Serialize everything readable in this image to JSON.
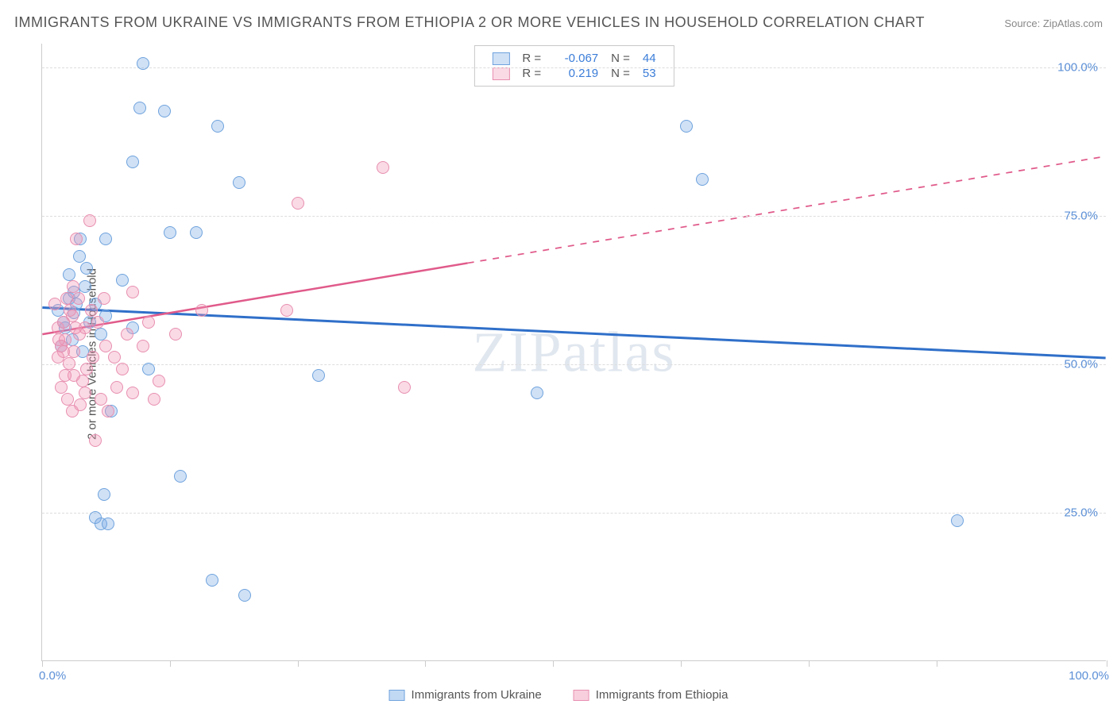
{
  "title": "IMMIGRANTS FROM UKRAINE VS IMMIGRANTS FROM ETHIOPIA 2 OR MORE VEHICLES IN HOUSEHOLD CORRELATION CHART",
  "source_label": "Source:",
  "source_value": "ZipAtlas.com",
  "ylabel": "2 or more Vehicles in Household",
  "watermark": "ZIPatlas",
  "chart": {
    "type": "scatter",
    "xlim": [
      0,
      100
    ],
    "ylim": [
      0,
      104
    ],
    "y_gridlines": [
      25,
      50,
      75,
      100
    ],
    "y_tick_labels": [
      "25.0%",
      "50.0%",
      "75.0%",
      "100.0%"
    ],
    "x_ticks": [
      0,
      12,
      24,
      36,
      48,
      60,
      72,
      84,
      100
    ],
    "x_tick_labels": {
      "left": "0.0%",
      "right": "100.0%"
    },
    "grid_color": "#dddddd",
    "axis_color": "#cccccc",
    "background_color": "#ffffff",
    "marker_radius": 8,
    "marker_border_width": 1.5,
    "series": [
      {
        "name": "Immigrants from Ukraine",
        "fill": "rgba(120,170,230,0.35)",
        "stroke": "#6fa3dd",
        "trend_color": "#2f6fc9",
        "trend_width": 3,
        "R": "-0.067",
        "N": "44",
        "trend": {
          "x1": 0,
          "y1": 59.5,
          "x2": 100,
          "y2": 51,
          "solid_until_x": 100
        },
        "points": [
          {
            "x": 9.5,
            "y": 100.5
          },
          {
            "x": 9.2,
            "y": 93
          },
          {
            "x": 11.5,
            "y": 92.5
          },
          {
            "x": 16.5,
            "y": 90
          },
          {
            "x": 8.5,
            "y": 84
          },
          {
            "x": 18.5,
            "y": 80.5
          },
          {
            "x": 12,
            "y": 72
          },
          {
            "x": 14.5,
            "y": 72
          },
          {
            "x": 6,
            "y": 71
          },
          {
            "x": 3.5,
            "y": 68
          },
          {
            "x": 7.5,
            "y": 64
          },
          {
            "x": 4,
            "y": 63
          },
          {
            "x": 2.5,
            "y": 61
          },
          {
            "x": 1.5,
            "y": 59
          },
          {
            "x": 3,
            "y": 58.5
          },
          {
            "x": 4.5,
            "y": 57
          },
          {
            "x": 2.2,
            "y": 56
          },
          {
            "x": 5.5,
            "y": 55
          },
          {
            "x": 2.8,
            "y": 54
          },
          {
            "x": 1.8,
            "y": 53
          },
          {
            "x": 3.8,
            "y": 52
          },
          {
            "x": 10,
            "y": 49
          },
          {
            "x": 26,
            "y": 48
          },
          {
            "x": 6.5,
            "y": 42
          },
          {
            "x": 13,
            "y": 31
          },
          {
            "x": 5.8,
            "y": 28
          },
          {
            "x": 5,
            "y": 24
          },
          {
            "x": 5.5,
            "y": 23
          },
          {
            "x": 6.2,
            "y": 23
          },
          {
            "x": 86,
            "y": 23.5
          },
          {
            "x": 16,
            "y": 13.5
          },
          {
            "x": 19,
            "y": 11
          },
          {
            "x": 62,
            "y": 81
          },
          {
            "x": 60.5,
            "y": 90
          },
          {
            "x": 46.5,
            "y": 45
          },
          {
            "x": 3.2,
            "y": 60
          },
          {
            "x": 2.5,
            "y": 65
          },
          {
            "x": 4.2,
            "y": 66
          },
          {
            "x": 3.0,
            "y": 62
          },
          {
            "x": 8.5,
            "y": 56
          },
          {
            "x": 6.0,
            "y": 58
          },
          {
            "x": 2.0,
            "y": 57
          },
          {
            "x": 5.0,
            "y": 60
          },
          {
            "x": 3.6,
            "y": 71
          }
        ]
      },
      {
        "name": "Immigrants from Ethiopia",
        "fill": "rgba(240,150,180,0.35)",
        "stroke": "#e88fb0",
        "trend_color": "#e05a8a",
        "trend_width": 2.5,
        "R": "0.219",
        "N": "53",
        "trend": {
          "x1": 0,
          "y1": 55,
          "x2": 100,
          "y2": 85,
          "solid_until_x": 40
        },
        "points": [
          {
            "x": 32,
            "y": 83
          },
          {
            "x": 24,
            "y": 77
          },
          {
            "x": 4.5,
            "y": 74
          },
          {
            "x": 3.2,
            "y": 71
          },
          {
            "x": 8.5,
            "y": 62
          },
          {
            "x": 15,
            "y": 59
          },
          {
            "x": 23,
            "y": 59
          },
          {
            "x": 2.8,
            "y": 58
          },
          {
            "x": 4.0,
            "y": 56
          },
          {
            "x": 1.5,
            "y": 56
          },
          {
            "x": 3.5,
            "y": 55
          },
          {
            "x": 2.2,
            "y": 54
          },
          {
            "x": 6.0,
            "y": 53
          },
          {
            "x": 1.8,
            "y": 53
          },
          {
            "x": 3.0,
            "y": 52
          },
          {
            "x": 4.8,
            "y": 51
          },
          {
            "x": 2.5,
            "y": 50
          },
          {
            "x": 7.5,
            "y": 49
          },
          {
            "x": 11,
            "y": 47
          },
          {
            "x": 3.8,
            "y": 47
          },
          {
            "x": 34,
            "y": 46
          },
          {
            "x": 8.5,
            "y": 45
          },
          {
            "x": 5.5,
            "y": 44
          },
          {
            "x": 10.5,
            "y": 44
          },
          {
            "x": 2.8,
            "y": 42
          },
          {
            "x": 5.0,
            "y": 37
          },
          {
            "x": 2.0,
            "y": 57
          },
          {
            "x": 2.6,
            "y": 59
          },
          {
            "x": 1.2,
            "y": 60
          },
          {
            "x": 3.4,
            "y": 61
          },
          {
            "x": 2.0,
            "y": 52
          },
          {
            "x": 4.2,
            "y": 49
          },
          {
            "x": 6.8,
            "y": 51
          },
          {
            "x": 9.5,
            "y": 53
          },
          {
            "x": 12.5,
            "y": 55
          },
          {
            "x": 5.2,
            "y": 57
          },
          {
            "x": 3.0,
            "y": 48
          },
          {
            "x": 7.0,
            "y": 46
          },
          {
            "x": 1.5,
            "y": 51
          },
          {
            "x": 2.2,
            "y": 48
          },
          {
            "x": 4.0,
            "y": 45
          },
          {
            "x": 1.8,
            "y": 46
          },
          {
            "x": 6.2,
            "y": 42
          },
          {
            "x": 3.6,
            "y": 43
          },
          {
            "x": 2.4,
            "y": 44
          },
          {
            "x": 8.0,
            "y": 55
          },
          {
            "x": 10.0,
            "y": 57
          },
          {
            "x": 4.6,
            "y": 59
          },
          {
            "x": 2.9,
            "y": 63
          },
          {
            "x": 5.8,
            "y": 61
          },
          {
            "x": 1.6,
            "y": 54
          },
          {
            "x": 3.1,
            "y": 56
          },
          {
            "x": 2.3,
            "y": 61
          }
        ]
      }
    ]
  },
  "legend_top_labels": {
    "R": "R =",
    "N": "N ="
  },
  "legend_bottom": [
    {
      "label": "Immigrants from Ukraine",
      "fill": "rgba(120,170,230,0.45)",
      "stroke": "#6fa3dd"
    },
    {
      "label": "Immigrants from Ethiopia",
      "fill": "rgba(240,150,180,0.45)",
      "stroke": "#e88fb0"
    }
  ]
}
